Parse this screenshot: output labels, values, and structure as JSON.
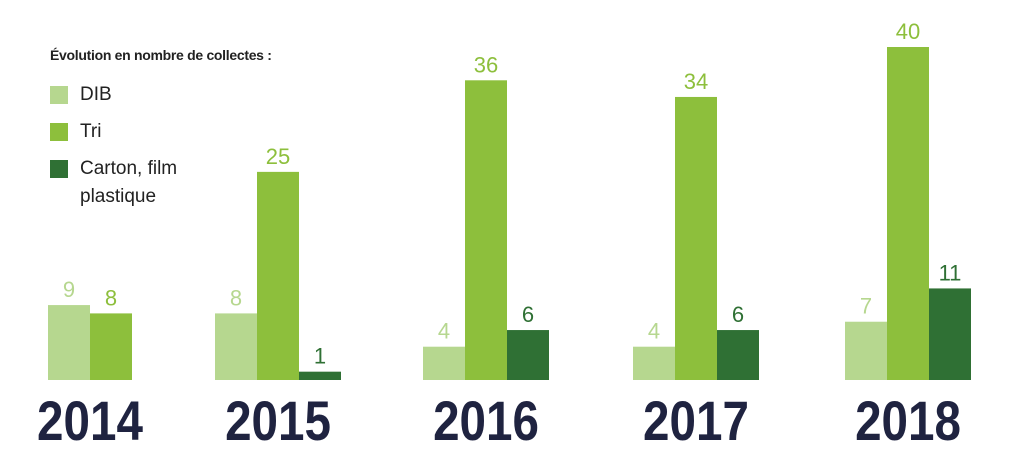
{
  "chart_data": {
    "type": "bar",
    "legend_title": "Évolution en nombre de collectes :",
    "categories": [
      "2014",
      "2015",
      "2016",
      "2017",
      "2018"
    ],
    "series": [
      {
        "name": "DIB",
        "color": "#b6d78f",
        "values": [
          9,
          8,
          4,
          4,
          7
        ]
      },
      {
        "name": "Tri",
        "color": "#8dbf3c",
        "values": [
          8,
          25,
          36,
          34,
          40
        ]
      },
      {
        "name": "Carton, film plastique",
        "color": "#2f7034",
        "values": [
          null,
          1,
          6,
          6,
          11
        ]
      }
    ],
    "category_color": "#1f2340"
  }
}
